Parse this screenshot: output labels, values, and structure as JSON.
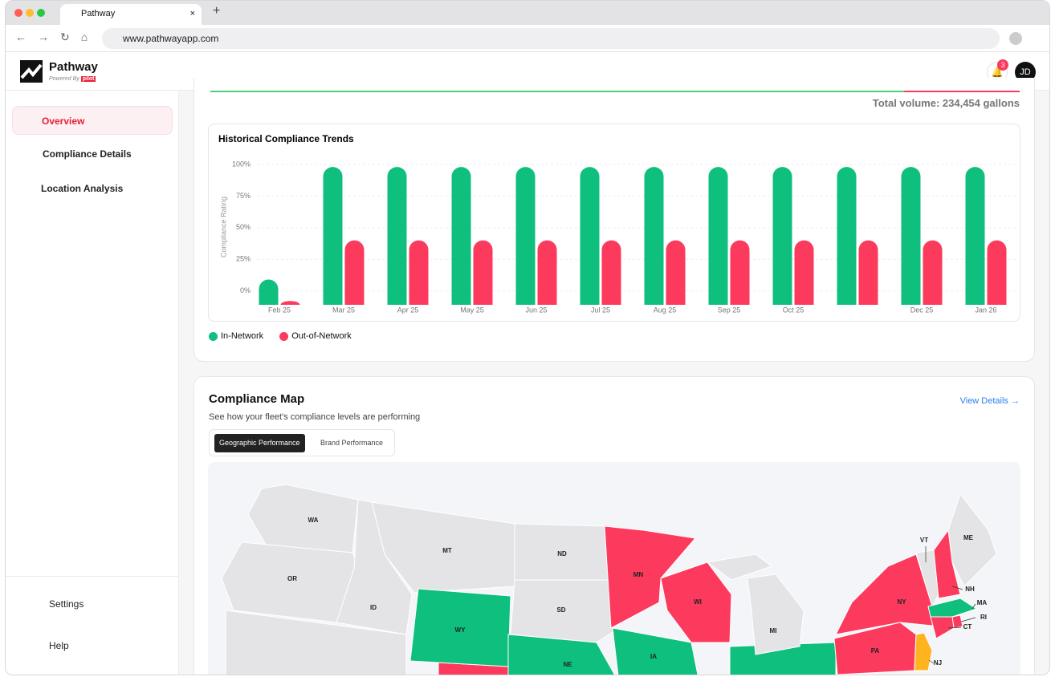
{
  "browser": {
    "tab_title": "Pathway",
    "url": "www.pathwayapp.com"
  },
  "header": {
    "brand": "Pathway",
    "powered_by": "Powered By",
    "logo": "pilot",
    "notifications": 3,
    "avatar": "JD"
  },
  "sidebar": {
    "nav": [
      "Overview",
      "Compliance Details",
      "Location Analysis"
    ],
    "footer": [
      "Settings",
      "Help"
    ]
  },
  "summary": {
    "total_volume": "Total volume: 234,454 gallons"
  },
  "chart_data": {
    "type": "bar",
    "title": "Historical Compliance Trends",
    "y_label": "Compliance Rating",
    "categories": [
      "Feb 25",
      "Mar 25",
      "Apr 25",
      "May 25",
      "Jun 25",
      "Jul 25",
      "Aug 25",
      "Sep 25",
      "Oct 25",
      null,
      "Dec 25",
      "Jan 26"
    ],
    "series": [
      {
        "name": "In-Network",
        "color": "#0fbf7d",
        "values": [
          9,
          98,
          98,
          98,
          98,
          98,
          98,
          98,
          98,
          98,
          98,
          98
        ]
      },
      {
        "name": "Out-of-Network",
        "color": "#fc3a5d",
        "values": [
          -8,
          40,
          40,
          40,
          40,
          40,
          40,
          40,
          40,
          40,
          40,
          40
        ]
      }
    ],
    "ylim": [
      -11,
      100
    ],
    "yticks": [
      {
        "value": 0,
        "label": "0%"
      },
      {
        "value": 25,
        "label": "25%"
      },
      {
        "value": 50,
        "label": "50%"
      },
      {
        "value": 75,
        "label": "75%"
      },
      {
        "value": 100,
        "label": "100%"
      }
    ],
    "grid": true
  },
  "map": {
    "title": "Compliance Map",
    "subtitle": "See how your fleet's compliance levels are performing",
    "link": "View Details",
    "tabs": [
      "Geographic Performance",
      "Brand Performance"
    ],
    "states": [
      {
        "label": "WA",
        "color": "#e4e4e6"
      },
      {
        "label": "MT",
        "color": "#e4e4e6"
      },
      {
        "label": "ND",
        "color": "#e4e4e6"
      },
      {
        "label": "OR",
        "color": "#e4e4e6"
      },
      {
        "label": "ID",
        "color": "#e4e4e6"
      },
      {
        "label": "SD",
        "color": "#e4e4e6"
      },
      {
        "label": "WY",
        "color": "#0fbf7d"
      },
      {
        "label": "NE",
        "color": "#0fbf7d"
      },
      {
        "label": "MN",
        "color": "#fc3a5d"
      },
      {
        "label": "WI",
        "color": "#fc3a5d"
      },
      {
        "label": "IA",
        "color": "#0fbf7d"
      },
      {
        "label": "MI",
        "color": "#e4e4e6"
      },
      {
        "label": "NY",
        "color": "#fc3a5d"
      },
      {
        "label": "PA",
        "color": "#fc3a5d"
      },
      {
        "label": "VT",
        "color": "#e4e4e6"
      },
      {
        "label": "ME",
        "color": "#e4e4e6"
      },
      {
        "label": "NH",
        "color": "#fc3a5d"
      },
      {
        "label": "MA",
        "color": "#0fbf7d"
      },
      {
        "label": "RI",
        "color": "#fc3a5d"
      },
      {
        "label": "CT",
        "color": "#fc3a5d"
      },
      {
        "label": "NJ",
        "color": "#ffb31f"
      }
    ]
  }
}
